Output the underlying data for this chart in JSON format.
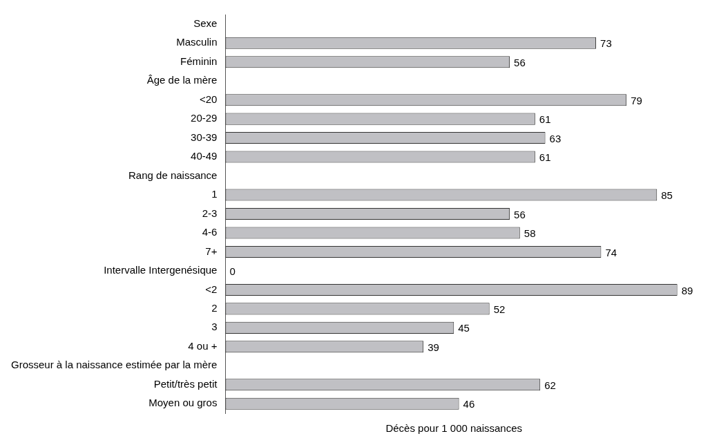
{
  "chart_data": {
    "type": "bar",
    "orientation": "horizontal",
    "xlabel": "Décès pour 1 000 naissances",
    "categories": [
      "Sexe",
      "Masculin",
      "Féminin",
      "Âge de la mère",
      "<20",
      "20-29",
      "30-39",
      "40-49",
      "Rang de naissance",
      "1",
      "2-3",
      "4-6",
      "7+",
      "Intervalle Intergenésique",
      "<2",
      "2",
      "3",
      "4 ou +",
      "Grosseur à la naissance estimée par la mère",
      "Petit/très petit",
      "Moyen ou gros"
    ],
    "values": [
      null,
      73,
      56,
      null,
      79,
      61,
      63,
      61,
      null,
      85,
      56,
      58,
      74,
      0,
      89,
      52,
      45,
      39,
      null,
      62,
      46
    ],
    "color": "#c0c0c4",
    "tick_labels": "y",
    "data_labels": true,
    "grid": false,
    "legend": false
  }
}
